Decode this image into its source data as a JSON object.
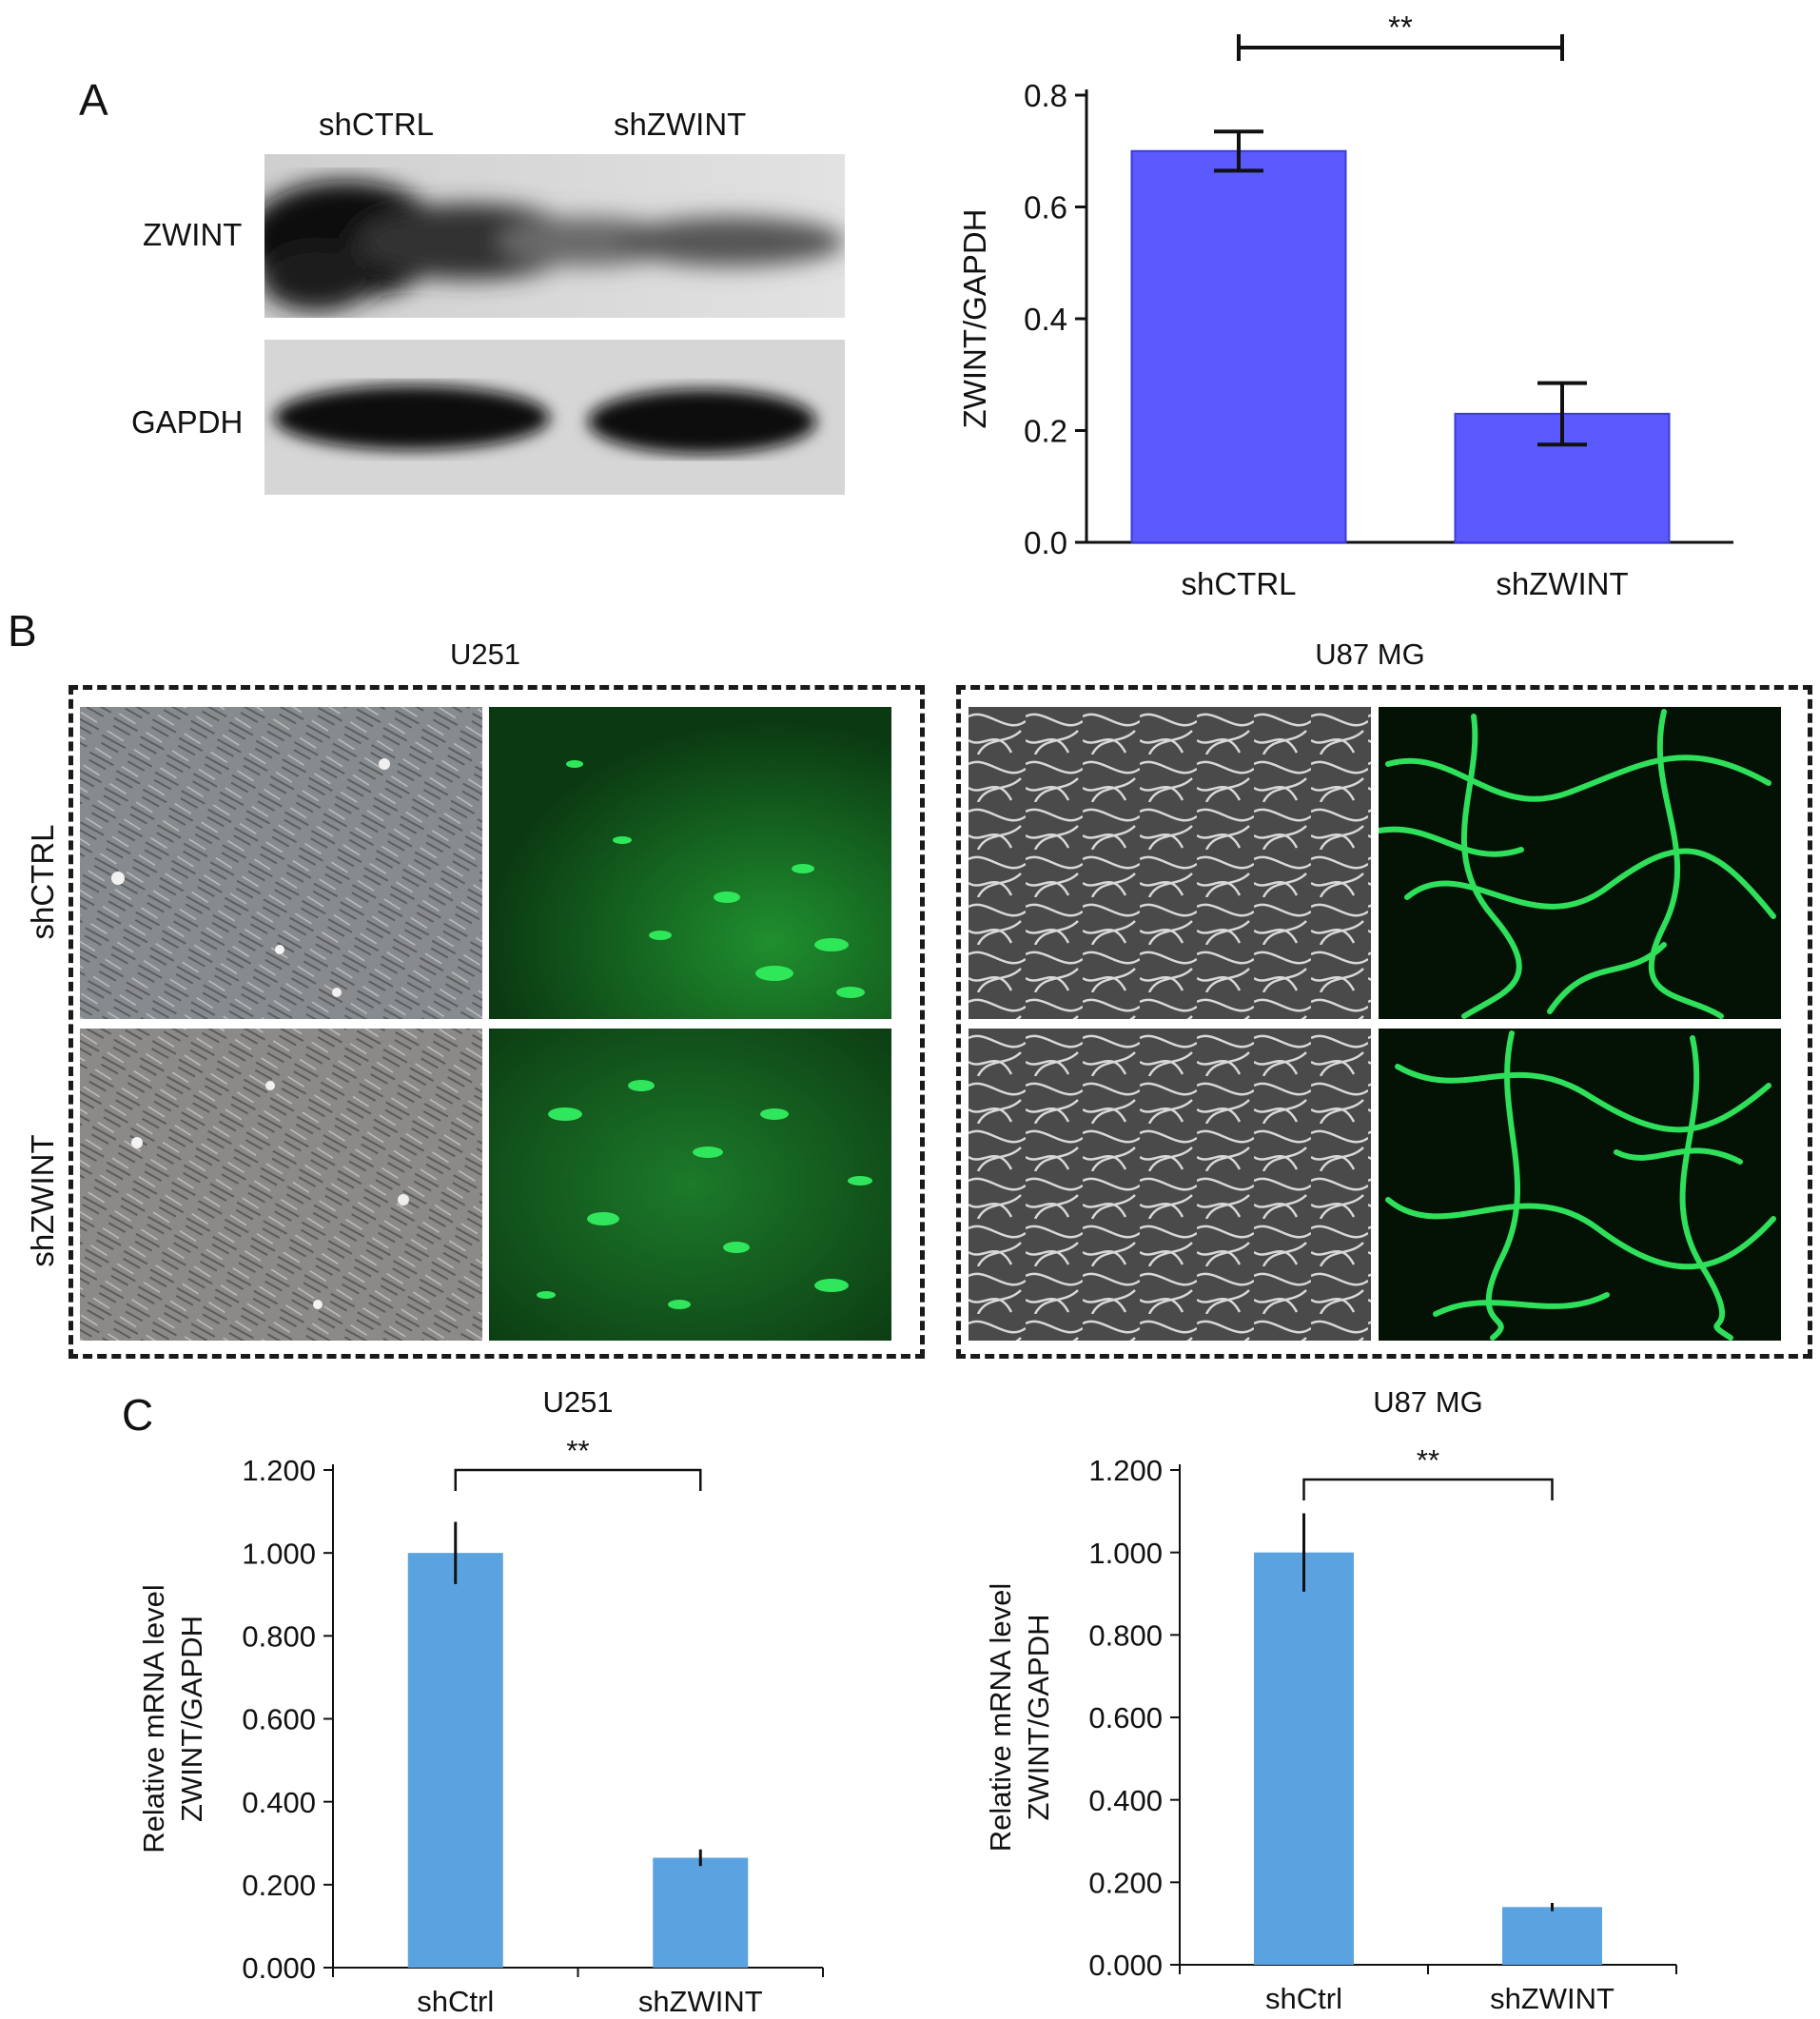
{
  "panel_a": {
    "letter": "A",
    "blot": {
      "lanes": [
        "shCTRL",
        "shZWINT"
      ],
      "rows": [
        "ZWINT",
        "GAPDH"
      ]
    }
  },
  "panel_b": {
    "letter": "B",
    "groups": [
      "U251",
      "U87 MG"
    ],
    "rows": [
      "shCTRL",
      "shZWINT"
    ],
    "colors": {
      "brightfield": "#8a8a8a",
      "fluorescence": "#22d84a"
    }
  },
  "panel_c": {
    "letter": "C"
  },
  "chart_data": [
    {
      "panel": "A",
      "type": "bar",
      "categories": [
        "shCTRL",
        "shZWINT"
      ],
      "values": [
        0.7,
        0.23
      ],
      "errors": [
        0.035,
        0.055
      ],
      "ylabel": "ZWINT/GAPDH",
      "ylim": [
        0,
        0.8
      ],
      "yticks": [
        "0.0",
        "0.2",
        "0.4",
        "0.6",
        "0.8"
      ],
      "significance": "**",
      "bar_color": "#5a5aff",
      "grid": false
    },
    {
      "panel": "C",
      "type": "bar",
      "title": "U251",
      "categories": [
        "shCtrl",
        "shZWINT"
      ],
      "values": [
        1.0,
        0.265
      ],
      "errors": [
        0.075,
        0.02
      ],
      "ylabel": [
        "Relative mRNA level",
        "ZWINT/GAPDH"
      ],
      "ylim": [
        0,
        1.2
      ],
      "yticks": [
        "0.000",
        "0.200",
        "0.400",
        "0.600",
        "0.800",
        "1.000",
        "1.200"
      ],
      "significance": "**",
      "bar_color": "#5ba3e0",
      "grid": false
    },
    {
      "panel": "C",
      "type": "bar",
      "title": "U87 MG",
      "categories": [
        "shCtrl",
        "shZWINT"
      ],
      "values": [
        1.0,
        0.14
      ],
      "errors": [
        0.095,
        0.01
      ],
      "ylabel": [
        "Relative mRNA level",
        "ZWINT/GAPDH"
      ],
      "ylim": [
        0,
        1.2
      ],
      "yticks": [
        "0.000",
        "0.200",
        "0.400",
        "0.600",
        "0.800",
        "1.000",
        "1.200"
      ],
      "significance": "**",
      "bar_color": "#5ba3e0",
      "grid": false
    }
  ]
}
